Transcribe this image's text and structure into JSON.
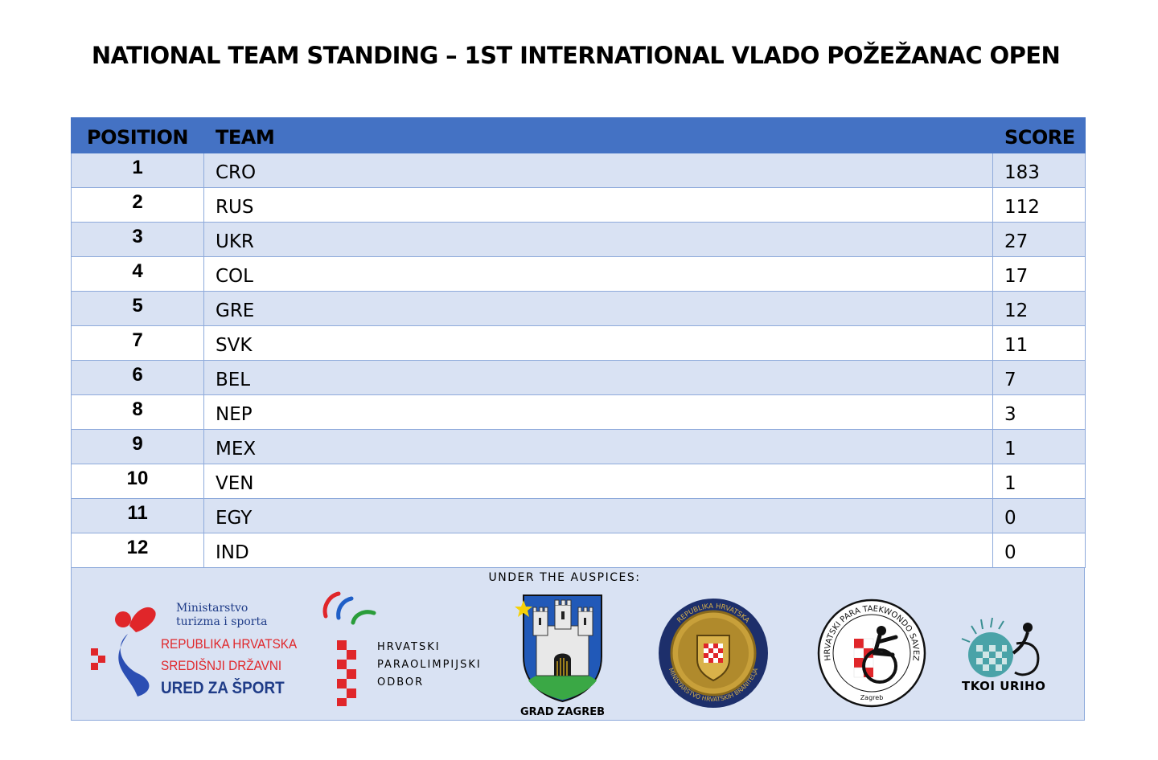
{
  "page_title": "NATIONAL TEAM STANDING – 1ST INTERNATIONAL VLADO POŽEŽANAC OPEN",
  "table": {
    "headers": {
      "position": "POSITION",
      "team": "TEAM",
      "score": "SCORE"
    },
    "rows": [
      {
        "position": "1",
        "team": "CRO",
        "score": "183"
      },
      {
        "position": "2",
        "team": "RUS",
        "score": "112"
      },
      {
        "position": "3",
        "team": "UKR",
        "score": "27"
      },
      {
        "position": "4",
        "team": "COL",
        "score": "17"
      },
      {
        "position": "5",
        "team": "GRE",
        "score": "12"
      },
      {
        "position": "7",
        "team": "SVK",
        "score": "11"
      },
      {
        "position": "6",
        "team": "BEL",
        "score": "7"
      },
      {
        "position": "8",
        "team": "NEP",
        "score": "3"
      },
      {
        "position": "9",
        "team": "MEX",
        "score": "1"
      },
      {
        "position": "10",
        "team": "VEN",
        "score": "1"
      },
      {
        "position": "11",
        "team": "EGY",
        "score": "0"
      },
      {
        "position": "12",
        "team": "IND",
        "score": "0"
      }
    ]
  },
  "auspices": {
    "title": "UNDER THE AUSPICES:",
    "logos": {
      "ministry": {
        "line1": "Ministarstvo",
        "line2": "turizma i sporta",
        "line3": "REPUBLIKA HRVATSKA",
        "line4": "SREDIŠNJI DRŽAVNI",
        "line5": "URED ZA ŠPORT"
      },
      "paralympic": {
        "line1": "HRVATSKI",
        "line2": "PARAOLIMPIJSKI",
        "line3": "ODBOR"
      },
      "zagreb": {
        "caption": "GRAD ZAGREB"
      },
      "veterans": {
        "ring_top": "REPUBLIKA HRVATSKA",
        "ring_bottom": "MINISTARSTVO HRVATSKIH BRANITELJA"
      },
      "para_taekwondo": {
        "ring": "HRVATSKI PARA TAEKWONDO SAVEZ",
        "city": "Zagreb"
      },
      "tkoi": {
        "caption": "TKOI URIHO"
      }
    }
  },
  "colors": {
    "header_bg": "#4472c4",
    "row_band": "#d9e2f3",
    "row_white": "#ffffff",
    "grid": "#8eaadb",
    "croatian_red": "#e0262a",
    "ministry_blue": "#1f3c88"
  }
}
